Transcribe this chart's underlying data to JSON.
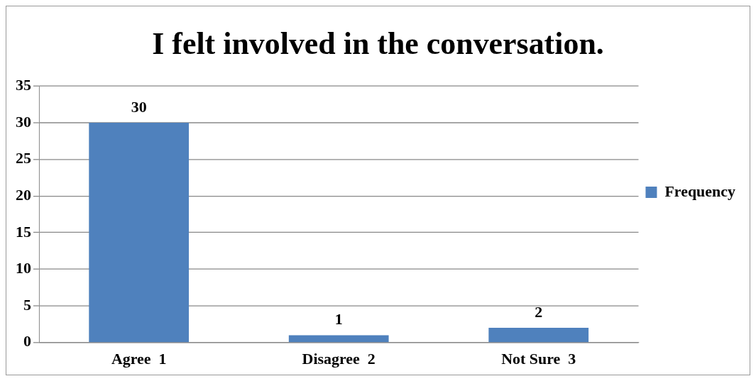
{
  "chart_data": {
    "type": "bar",
    "title": "I felt involved in the conversation.",
    "categories": [
      "Agree  1",
      "Disagree  2",
      "Not Sure  3"
    ],
    "series": [
      {
        "name": "Frequency",
        "color": "#4f81bd",
        "values": [
          30,
          1,
          2
        ]
      }
    ],
    "ylim": [
      0,
      35
    ],
    "yticks": [
      0,
      5,
      10,
      15,
      20,
      25,
      30,
      35
    ],
    "grid": "y",
    "legend": "right",
    "data_labels": true
  }
}
